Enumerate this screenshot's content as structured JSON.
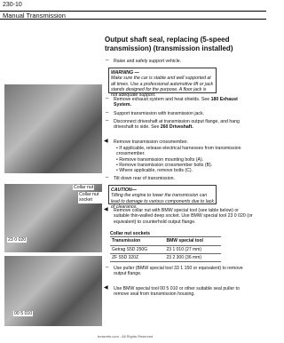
{
  "header": {
    "page": "230-10",
    "section": "Manual Transmission"
  },
  "title": "Output shaft seal, replacing (5-speed transmission) (transmission installed)",
  "steps": [
    {
      "text": "Raise and safely support vehicle."
    },
    {
      "text": "Remove exhaust system and heat shields. See",
      "ref": "180 Exhaust System."
    },
    {
      "text": "Support transmission with transmission jack."
    },
    {
      "text": "Disconnect driveshaft at transmission output flange, and hang driveshaft to side. See",
      "ref": "260 Driveshaft."
    },
    {
      "text": "Remove transmission crossmember."
    },
    {
      "text": "Tilt down rear of transmission."
    },
    {
      "text": "Remove collar nut with BMW special tool (see table below) or suitable thin-walled deep socket. Use BMW special tool 23 0 020 (or equivalent) to counterhold output flange."
    },
    {
      "text": "Use puller (BMW special tool 33 1 150 or equivalent) to remove output flange."
    },
    {
      "text": "Use BMW special tool 00 5 010 or other suitable seal puller to remove seal from transmission housing."
    }
  ],
  "bullets": [
    "If applicable, release electrical harnesses from transmission crossmember.",
    "Remove transmission mounting bolts (A).",
    "Remove transmission crossmember bolts (B).",
    "Where applicable, remove bolts (C)."
  ],
  "warning": {
    "title": "WARNING —",
    "text": "Make sure the car is stable and well supported at all times. Use a professional automotive lift or jack stands designed for the purpose. A floor jack is not adequate support."
  },
  "caution": {
    "title": "CAUTION—",
    "text": "Tilting the engine to lower the transmission can lead to damage to various components due to lack of clearance."
  },
  "table": {
    "caption": "Collar nut sockets",
    "header": [
      "Transmission",
      "BMW special tool"
    ],
    "rows": [
      [
        "Getrag S5D 250G",
        "23 1 010 (27 mm)"
      ],
      [
        "ZF S5D 320Z",
        "23 2 300 (36 mm)"
      ]
    ]
  },
  "figures": {
    "collar_nut": "Collar nut",
    "collar_nut_socket": "Collar nut socket",
    "tool1": "23 0 020",
    "tool2": "00 5 010"
  },
  "footer": "bmwrefs.com - All Rights Reserved"
}
